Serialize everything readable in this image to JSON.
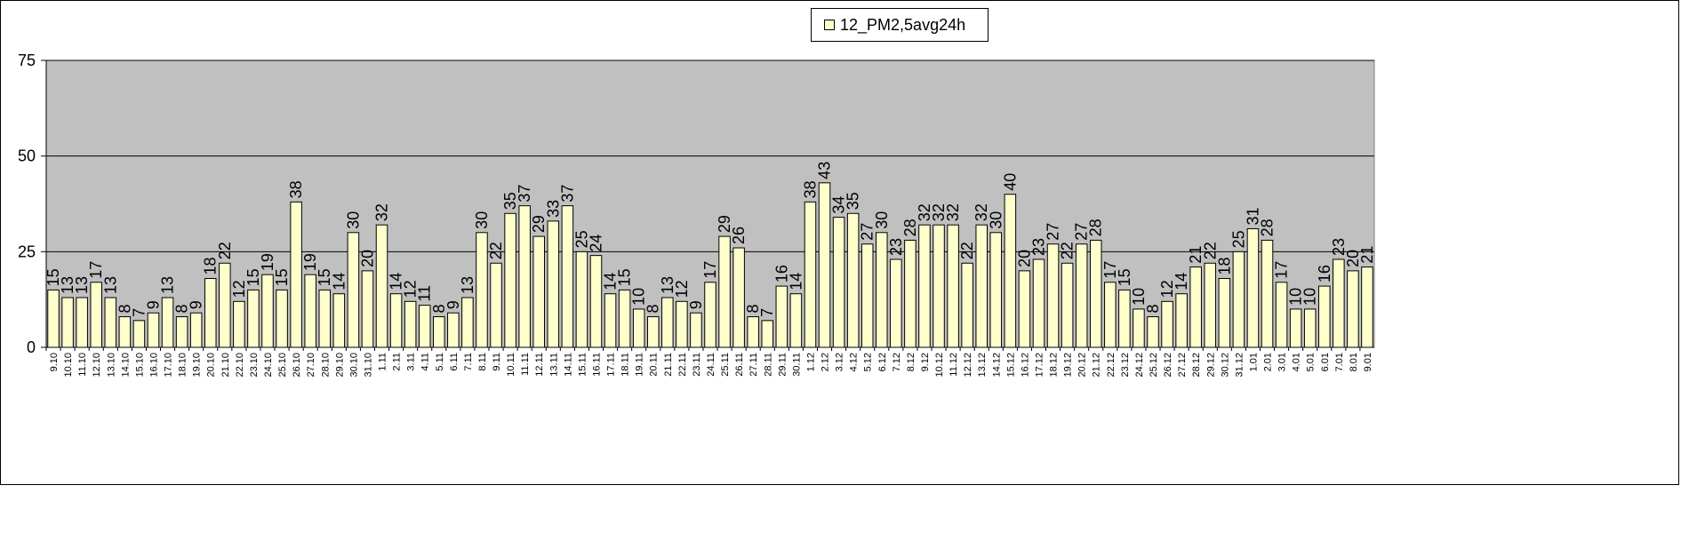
{
  "chart_data": {
    "type": "bar",
    "title": "",
    "xlabel": "",
    "ylabel": "",
    "ylim": [
      0,
      75
    ],
    "yticks": [
      0,
      25,
      50,
      75
    ],
    "grid": true,
    "legend_position": "top-center",
    "plot_background": "#c0c0c0",
    "bar_color": "#ffffcc",
    "categories": [
      "9.10",
      "10.10",
      "11.10",
      "12.10",
      "13.10",
      "14.10",
      "15.10",
      "16.10",
      "17.10",
      "18.10",
      "19.10",
      "20.10",
      "21.10",
      "22.10",
      "23.10",
      "24.10",
      "25.10",
      "26.10",
      "27.10",
      "28.10",
      "29.10",
      "30.10",
      "31.10",
      "1.11",
      "2.11",
      "3.11",
      "4.11",
      "5.11",
      "6.11",
      "7.11",
      "8.11",
      "9.11",
      "10.11",
      "11.11",
      "12.11",
      "13.11",
      "14.11",
      "15.11",
      "16.11",
      "17.11",
      "18.11",
      "19.11",
      "20.11",
      "21.11",
      "22.11",
      "23.11",
      "24.11",
      "25.11",
      "26.11",
      "27.11",
      "28.11",
      "29.11",
      "30.11",
      "1.12",
      "2.12",
      "3.12",
      "4.12",
      "5.12",
      "6.12",
      "7.12",
      "8.12",
      "9.12",
      "10.12",
      "11.12",
      "12.12",
      "13.12",
      "14.12",
      "15.12",
      "16.12",
      "17.12",
      "18.12",
      "19.12",
      "20.12",
      "21.12",
      "22.12",
      "23.12",
      "24.12",
      "25.12",
      "26.12",
      "27.12",
      "28.12",
      "29.12",
      "30.12",
      "31.12",
      "1.01",
      "2.01",
      "3.01",
      "4.01",
      "5.01",
      "6.01",
      "7.01",
      "8.01",
      "9.01"
    ],
    "series": [
      {
        "name": "12_PM2,5avg24h",
        "values": [
          15,
          13,
          13,
          17,
          13,
          8,
          7,
          9,
          13,
          8,
          9,
          18,
          22,
          12,
          15,
          19,
          15,
          38,
          19,
          15,
          14,
          30,
          20,
          32,
          14,
          12,
          11,
          8,
          9,
          13,
          30,
          22,
          35,
          37,
          29,
          33,
          37,
          25,
          24,
          14,
          15,
          10,
          8,
          13,
          12,
          9,
          17,
          29,
          26,
          8,
          7,
          16,
          14,
          38,
          43,
          34,
          35,
          27,
          30,
          23,
          28,
          32,
          32,
          32,
          22,
          32,
          30,
          40,
          20,
          23,
          27,
          22,
          27,
          28,
          17,
          15,
          10,
          8,
          12,
          14,
          21,
          22,
          18,
          25,
          31,
          28,
          17,
          10,
          10,
          16,
          23,
          20,
          21
        ]
      }
    ]
  }
}
